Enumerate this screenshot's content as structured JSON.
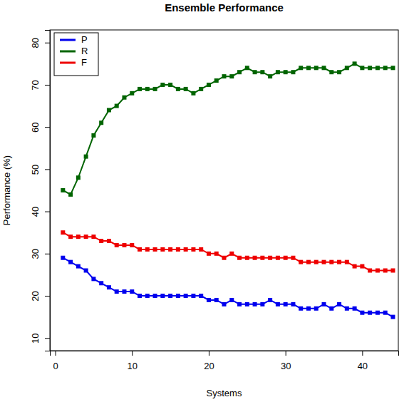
{
  "chart_data": {
    "type": "line",
    "title": "Ensemble Performance",
    "x_label": "Systems",
    "y_label": "Performance (%)",
    "x": [
      1,
      2,
      3,
      4,
      5,
      6,
      7,
      8,
      9,
      10,
      11,
      12,
      13,
      14,
      15,
      16,
      17,
      18,
      19,
      20,
      21,
      22,
      23,
      24,
      25,
      26,
      27,
      28,
      29,
      30,
      31,
      32,
      33,
      34,
      35,
      36,
      37,
      38,
      39,
      40,
      41,
      42,
      43,
      44
    ],
    "series": [
      {
        "name": "P",
        "color": "#0000ee",
        "values": [
          29,
          28,
          27,
          26,
          24,
          23,
          22,
          21,
          21,
          21,
          20,
          20,
          20,
          20,
          20,
          20,
          20,
          20,
          20,
          19,
          19,
          18,
          19,
          18,
          18,
          18,
          18,
          19,
          18,
          18,
          18,
          17,
          17,
          17,
          18,
          17,
          18,
          17,
          17,
          16,
          16,
          16,
          16,
          15
        ]
      },
      {
        "name": "R",
        "color": "#006400",
        "values": [
          45,
          44,
          48,
          53,
          58,
          61,
          64,
          65,
          67,
          68,
          69,
          69,
          69,
          70,
          70,
          69,
          69,
          68,
          69,
          70,
          71,
          72,
          72,
          73,
          74,
          73,
          73,
          72,
          73,
          73,
          73,
          74,
          74,
          74,
          74,
          73,
          73,
          74,
          75,
          74,
          74,
          74,
          74,
          74
        ]
      },
      {
        "name": "F",
        "color": "#ee0000",
        "values": [
          35,
          34,
          34,
          34,
          34,
          33,
          33,
          32,
          32,
          32,
          31,
          31,
          31,
          31,
          31,
          31,
          31,
          31,
          31,
          30,
          30,
          29,
          30,
          29,
          29,
          29,
          29,
          29,
          29,
          29,
          29,
          28,
          28,
          28,
          28,
          28,
          28,
          28,
          27,
          27,
          26,
          26,
          26,
          26
        ]
      }
    ],
    "xlim": [
      -0.7,
      44.7
    ],
    "xticks": [
      0,
      10,
      20,
      30,
      40
    ],
    "ylim": [
      7,
      83
    ],
    "yticks": [
      10,
      20,
      30,
      40,
      50,
      60,
      70,
      80
    ],
    "grid": false,
    "legend": "top-left",
    "marker": "square",
    "line_style": "solid"
  }
}
